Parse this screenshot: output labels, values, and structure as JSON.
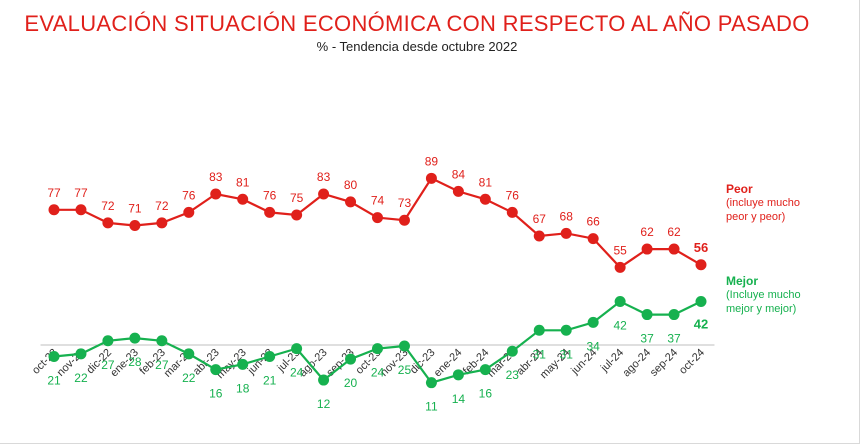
{
  "title": "EVALUACIÓN SITUACIÓN ECONÓMICA CON RESPECTO AL AÑO PASADO",
  "subtitle": "% - Tendencia desde octubre 2022",
  "legend": {
    "peor_name": "Peor",
    "peor_desc1": "(incluye mucho",
    "peor_desc2": "peor y peor)",
    "mejor_name": "Mejor",
    "mejor_desc1": "(Incluye mucho",
    "mejor_desc2": "mejor y mejor)"
  },
  "chart_data": {
    "type": "line",
    "x": [
      "oct-22",
      "nov-22",
      "dic-22",
      "ene-23",
      "feb-23",
      "mar-23",
      "abr-23",
      "may-23",
      "jun-23",
      "jul-23",
      "ago-23",
      "sep-23",
      "oct-23",
      "nov-23",
      "dic-23",
      "ene-24",
      "feb-24",
      "mar-24",
      "abr-24",
      "may-24",
      "jun-24",
      "jul-24",
      "ago-24",
      "sep-24",
      "oct-24"
    ],
    "series": [
      {
        "name": "Peor",
        "color": "#e0201b",
        "values": [
          77,
          77,
          72,
          71,
          72,
          76,
          83,
          81,
          76,
          75,
          83,
          80,
          74,
          73,
          89,
          84,
          81,
          76,
          67,
          68,
          66,
          55,
          62,
          62,
          56
        ]
      },
      {
        "name": "Mejor",
        "color": "#16b14f",
        "values": [
          21,
          22,
          27,
          28,
          27,
          22,
          16,
          18,
          21,
          24,
          12,
          20,
          24,
          25,
          11,
          14,
          16,
          23,
          31,
          31,
          34,
          42,
          37,
          37,
          42
        ]
      }
    ],
    "grid": false,
    "legend_position": "right"
  }
}
